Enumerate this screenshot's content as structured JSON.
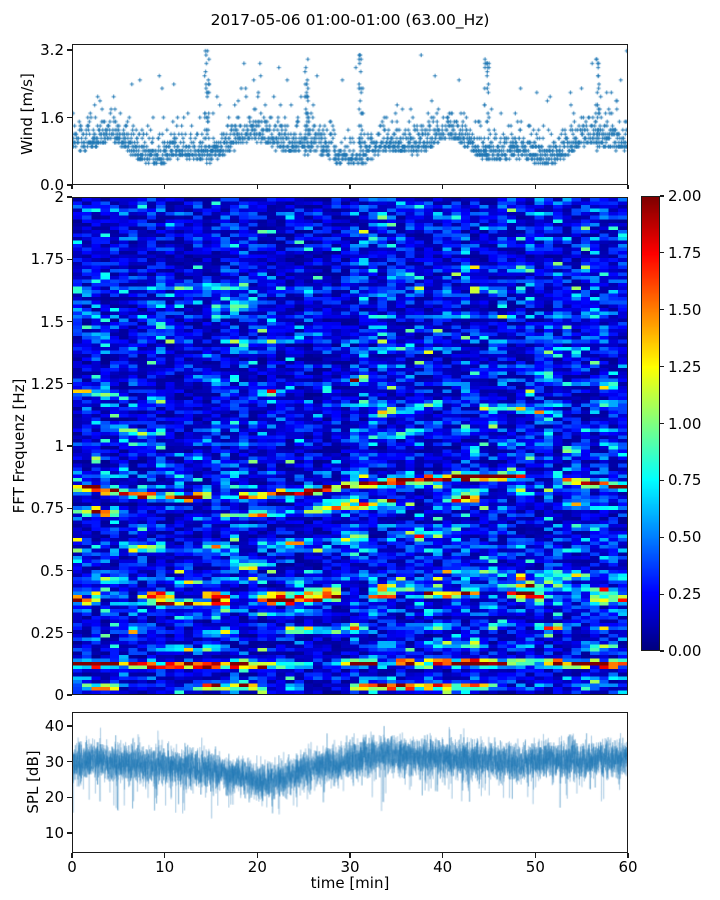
{
  "title": "2017-05-06 01:00-01:00 (63.00_Hz)",
  "xaxis": {
    "label": "time [min]",
    "ticks": [
      0,
      10,
      20,
      30,
      40,
      50,
      60
    ],
    "min": 0,
    "max": 60
  },
  "colors": {
    "scatter": "#1f77b4",
    "spl_line": "#1f77b4",
    "axis": "#1b1b1b",
    "background": "#ffffff"
  },
  "colorbar": {
    "ticks": [
      "2.00",
      "1.75",
      "1.50",
      "1.25",
      "1.00",
      "0.75",
      "0.50",
      "0.25",
      "0.00"
    ],
    "min": 0.0,
    "max": 2.0,
    "colormap": "jet"
  },
  "chart_data": [
    {
      "id": "wind",
      "type": "scatter",
      "ylabel": "Wind [m/s]",
      "yticks": [
        "0.0",
        "1.6",
        "3.2"
      ],
      "ytick_values": [
        0.0,
        1.6,
        3.2
      ],
      "ylim": [
        0,
        3.343
      ],
      "xlim": [
        0,
        60
      ],
      "marker": "plus",
      "n_samples": 2400,
      "quantization_mps": 0.1,
      "min_speed": 0.5,
      "max_speed": 3.25,
      "mean_level": 0.72,
      "sigma": 0.33,
      "gust_prob": 0.085,
      "gust_mean": 0.85,
      "gust_times_min": [
        14.5,
        25.3,
        31.2,
        44.8,
        56.8
      ],
      "seed": 7
    },
    {
      "id": "fft_spectrogram",
      "type": "heatmap",
      "ylabel": "FFT Frequenz [Hz]",
      "yticks": [
        "0",
        "0.25",
        "0.5",
        "0.75",
        "1",
        "1.25",
        "1.5",
        "1.75",
        "2"
      ],
      "ytick_values": [
        0,
        0.25,
        0.5,
        0.75,
        1,
        1.25,
        1.5,
        1.75,
        2
      ],
      "ylim": [
        0,
        2
      ],
      "clim": [
        0,
        2
      ],
      "colormap": "jet",
      "time_bins": 60,
      "freq_bins": 140,
      "background_level": 0.22,
      "speckle_prob": 0.05,
      "wiggle": {
        "rel_amplitude": 0.05,
        "min_at_min": 15,
        "max_at_min": 45
      },
      "bands": [
        {
          "f": 0.03,
          "amp": 1.7,
          "cover": 0.55
        },
        {
          "f": 0.12,
          "amp": 1.95,
          "cover": 0.8
        },
        {
          "f": 0.19,
          "amp": 0.8,
          "cover": 0.5
        },
        {
          "f": 0.26,
          "amp": 1.2,
          "cover": 0.6
        },
        {
          "f": 0.33,
          "amp": 0.6,
          "cover": 0.35
        },
        {
          "f": 0.385,
          "amp": 2.1,
          "cover": 0.8
        },
        {
          "f": 0.415,
          "amp": 1.6,
          "cover": 0.55
        },
        {
          "f": 0.47,
          "amp": 0.8,
          "cover": 0.5
        },
        {
          "f": 0.54,
          "amp": 1.0,
          "cover": 0.5
        },
        {
          "f": 0.62,
          "amp": 1.1,
          "cover": 0.45
        },
        {
          "f": 0.675,
          "amp": 0.5,
          "cover": 0.3
        },
        {
          "f": 0.75,
          "amp": 1.7,
          "cover": 0.7
        },
        {
          "f": 0.78,
          "amp": 1.1,
          "cover": 0.45
        },
        {
          "f": 0.835,
          "amp": 2.2,
          "cover": 0.92
        },
        {
          "f": 0.9,
          "amp": 0.5,
          "cover": 0.3
        },
        {
          "f": 0.97,
          "amp": 0.9,
          "cover": 0.4
        },
        {
          "f": 1.01,
          "amp": 0.7,
          "cover": 0.35
        },
        {
          "f": 1.1,
          "amp": 1.0,
          "cover": 0.5
        },
        {
          "f": 1.16,
          "amp": 0.5,
          "cover": 0.3
        },
        {
          "f": 1.245,
          "amp": 1.1,
          "cover": 0.5
        },
        {
          "f": 1.34,
          "amp": 0.6,
          "cover": 0.3
        },
        {
          "f": 1.47,
          "amp": 0.6,
          "cover": 0.3
        },
        {
          "f": 1.555,
          "amp": 0.7,
          "cover": 0.35
        },
        {
          "f": 1.64,
          "amp": 0.9,
          "cover": 0.4
        },
        {
          "f": 1.73,
          "amp": 0.6,
          "cover": 0.3
        },
        {
          "f": 1.83,
          "amp": 0.5,
          "cover": 0.25
        },
        {
          "f": 1.93,
          "amp": 0.6,
          "cover": 0.3
        }
      ],
      "seed": 11
    },
    {
      "id": "spl",
      "type": "line",
      "ylabel": "SPL [dB]",
      "yticks": [
        "10",
        "20",
        "30",
        "40"
      ],
      "ytick_values": [
        10,
        20,
        30,
        40
      ],
      "ylim": [
        4.4,
        43.9
      ],
      "traces": 4,
      "alpha": 0.28,
      "noise_db": 2.4,
      "spike_prob": 0.016,
      "envelope_t": [
        0,
        2,
        4,
        7,
        10,
        13,
        16,
        19,
        20,
        22,
        24,
        26,
        29,
        32,
        34,
        37,
        40,
        43,
        46,
        48,
        50,
        53,
        56,
        58,
        60
      ],
      "envelope_db": [
        29,
        31,
        29.5,
        29.5,
        28.5,
        28,
        27,
        25.5,
        24.5,
        25,
        26.5,
        28.5,
        29.5,
        31.5,
        32,
        31.5,
        31,
        31,
        30,
        29.5,
        30.5,
        30.5,
        30.5,
        31,
        31
      ],
      "seed": 23
    }
  ]
}
